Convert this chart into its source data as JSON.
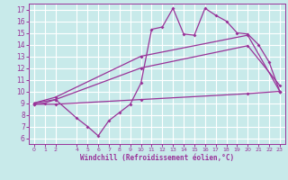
{
  "bg_color": "#c8eaea",
  "grid_color": "#ffffff",
  "line_color": "#993399",
  "xlabel": "Windchill (Refroidissement éolien,°C)",
  "xlim": [
    -0.5,
    23.5
  ],
  "ylim": [
    5.5,
    17.5
  ],
  "yticks": [
    6,
    7,
    8,
    9,
    10,
    11,
    12,
    13,
    14,
    15,
    16,
    17
  ],
  "xticks": [
    0,
    1,
    2,
    4,
    5,
    6,
    7,
    8,
    9,
    10,
    11,
    12,
    13,
    14,
    15,
    16,
    17,
    18,
    19,
    20,
    21,
    22,
    23
  ],
  "lines": [
    {
      "x": [
        0,
        1,
        2,
        4,
        5,
        6,
        7,
        8,
        9,
        10,
        11,
        12,
        13,
        14,
        15,
        16,
        17,
        18,
        19,
        20,
        21,
        22,
        23
      ],
      "y": [
        8.9,
        9.0,
        9.3,
        7.7,
        7.0,
        6.2,
        7.5,
        8.2,
        8.9,
        10.7,
        15.3,
        15.5,
        17.1,
        14.9,
        14.8,
        17.1,
        16.5,
        16.0,
        15.0,
        14.9,
        14.0,
        12.5,
        10.0
      ]
    },
    {
      "x": [
        0,
        2,
        10,
        20,
        23
      ],
      "y": [
        9.0,
        9.5,
        13.0,
        14.8,
        10.0
      ]
    },
    {
      "x": [
        0,
        2,
        10,
        20,
        23
      ],
      "y": [
        9.0,
        9.3,
        12.0,
        13.9,
        10.5
      ]
    },
    {
      "x": [
        0,
        2,
        10,
        20,
        23
      ],
      "y": [
        8.9,
        8.9,
        9.3,
        9.8,
        10.0
      ]
    }
  ]
}
